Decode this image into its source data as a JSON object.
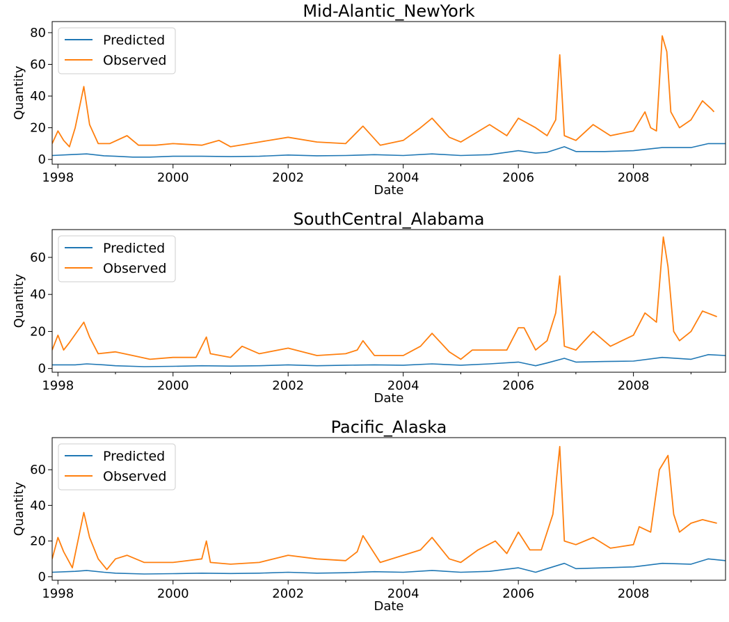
{
  "chart_data": [
    {
      "type": "line",
      "title": "Mid-Alantic_NewYork",
      "xlabel": "Date",
      "ylabel": "Quantity",
      "xlim": [
        1997.9,
        2009.6
      ],
      "ylim": [
        -3,
        87
      ],
      "xticks": [
        1998,
        2000,
        2002,
        2004,
        2006,
        2008
      ],
      "xtick_labels": [
        "1998",
        "2000",
        "2002",
        "2004",
        "2006",
        "2008"
      ],
      "yticks": [
        0,
        20,
        40,
        60,
        80
      ],
      "ytick_labels": [
        "0",
        "20",
        "40",
        "60",
        "80"
      ],
      "legend": {
        "position": "upper-left",
        "entries": [
          "Predicted",
          "Observed"
        ]
      },
      "series": [
        {
          "name": "Predicted",
          "color": "#1f77b4",
          "x": [
            1997.9,
            1998.2,
            1998.5,
            1998.8,
            1999.0,
            1999.3,
            1999.6,
            2000.0,
            2000.5,
            2001.0,
            2001.5,
            2002.0,
            2002.5,
            2003.0,
            2003.5,
            2004.0,
            2004.5,
            2005.0,
            2005.5,
            2006.0,
            2006.3,
            2006.5,
            2006.8,
            2007.0,
            2007.5,
            2008.0,
            2008.5,
            2009.0,
            2009.3,
            2009.6
          ],
          "y": [
            2.5,
            3.0,
            3.5,
            2.3,
            2.0,
            1.5,
            1.5,
            2.0,
            2.0,
            1.8,
            2.0,
            2.8,
            2.3,
            2.5,
            3.0,
            2.5,
            3.5,
            2.5,
            3.0,
            5.5,
            4.0,
            4.5,
            8.0,
            5.0,
            5.0,
            5.5,
            7.5,
            7.5,
            10.0,
            10.0
          ]
        },
        {
          "name": "Observed",
          "color": "#ff7f0e",
          "x": [
            1997.9,
            1998.0,
            1998.1,
            1998.2,
            1998.3,
            1998.45,
            1998.55,
            1998.7,
            1998.9,
            1999.2,
            1999.4,
            1999.7,
            2000.0,
            2000.5,
            2000.8,
            2001.0,
            2001.5,
            2002.0,
            2002.5,
            2003.0,
            2003.3,
            2003.6,
            2004.0,
            2004.3,
            2004.5,
            2004.8,
            2005.0,
            2005.5,
            2005.8,
            2006.0,
            2006.3,
            2006.5,
            2006.65,
            2006.72,
            2006.8,
            2007.0,
            2007.3,
            2007.6,
            2008.0,
            2008.2,
            2008.3,
            2008.4,
            2008.5,
            2008.58,
            2008.65,
            2008.8,
            2009.0,
            2009.2,
            2009.35,
            2009.4
          ],
          "y": [
            10,
            18,
            12,
            8,
            20,
            46,
            22,
            10,
            10,
            15,
            9,
            9,
            10,
            9,
            12,
            8,
            11,
            14,
            11,
            10,
            21,
            9,
            12,
            20,
            26,
            14,
            11,
            22,
            15,
            26,
            20,
            15,
            25,
            66,
            15,
            12,
            22,
            15,
            18,
            30,
            20,
            18,
            78,
            68,
            30,
            20,
            25,
            37,
            32,
            30
          ]
        }
      ]
    },
    {
      "type": "line",
      "title": "SouthCentral_Alabama",
      "xlabel": "Date",
      "ylabel": "Quantity",
      "xlim": [
        1997.9,
        2009.6
      ],
      "ylim": [
        -2,
        75
      ],
      "xticks": [
        1998,
        2000,
        2002,
        2004,
        2006,
        2008
      ],
      "xtick_labels": [
        "1998",
        "2000",
        "2002",
        "2004",
        "2006",
        "2008"
      ],
      "yticks": [
        0,
        20,
        40,
        60
      ],
      "ytick_labels": [
        "0",
        "20",
        "40",
        "60"
      ],
      "legend": {
        "position": "upper-left",
        "entries": [
          "Predicted",
          "Observed"
        ]
      },
      "series": [
        {
          "name": "Predicted",
          "color": "#1f77b4",
          "x": [
            1997.9,
            1998.3,
            1998.5,
            1998.8,
            1999.0,
            1999.5,
            2000.0,
            2000.5,
            2001.0,
            2001.5,
            2002.0,
            2002.5,
            2003.0,
            2003.5,
            2004.0,
            2004.5,
            2005.0,
            2005.5,
            2006.0,
            2006.3,
            2006.5,
            2006.8,
            2007.0,
            2007.5,
            2008.0,
            2008.5,
            2009.0,
            2009.3,
            2009.6
          ],
          "y": [
            2.0,
            2.0,
            2.5,
            2.0,
            1.5,
            1.0,
            1.2,
            1.5,
            1.3,
            1.5,
            2.0,
            1.5,
            1.8,
            2.0,
            1.8,
            2.5,
            1.8,
            2.5,
            3.5,
            1.5,
            3.0,
            5.5,
            3.5,
            3.8,
            4.0,
            6.0,
            5.0,
            7.5,
            7.0
          ]
        },
        {
          "name": "Observed",
          "color": "#ff7f0e",
          "x": [
            1997.9,
            1998.0,
            1998.1,
            1998.2,
            1998.45,
            1998.55,
            1998.7,
            1999.0,
            1999.3,
            1999.6,
            2000.0,
            2000.4,
            2000.58,
            2000.65,
            2001.0,
            2001.2,
            2001.5,
            2002.0,
            2002.5,
            2003.0,
            2003.2,
            2003.3,
            2003.5,
            2004.0,
            2004.3,
            2004.5,
            2004.8,
            2005.0,
            2005.2,
            2005.5,
            2005.8,
            2006.0,
            2006.1,
            2006.3,
            2006.5,
            2006.65,
            2006.72,
            2006.8,
            2007.0,
            2007.3,
            2007.6,
            2008.0,
            2008.2,
            2008.4,
            2008.52,
            2008.6,
            2008.7,
            2008.8,
            2009.0,
            2009.2,
            2009.45
          ],
          "y": [
            10,
            18,
            10,
            14,
            25,
            17,
            8,
            9,
            7,
            5,
            6,
            6,
            17,
            8,
            6,
            12,
            8,
            11,
            7,
            8,
            10,
            15,
            7,
            7,
            12,
            19,
            9,
            5,
            10,
            10,
            10,
            22,
            22,
            10,
            15,
            30,
            50,
            12,
            10,
            20,
            12,
            18,
            30,
            25,
            71,
            55,
            20,
            15,
            20,
            31,
            28
          ]
        }
      ]
    },
    {
      "type": "line",
      "title": "Pacific_Alaska",
      "xlabel": "Date",
      "ylabel": "Quantity",
      "xlim": [
        1997.9,
        2009.6
      ],
      "ylim": [
        -2,
        78
      ],
      "xticks": [
        1998,
        2000,
        2002,
        2004,
        2006,
        2008
      ],
      "xtick_labels": [
        "1998",
        "2000",
        "2002",
        "2004",
        "2006",
        "2008"
      ],
      "yticks": [
        0,
        20,
        40,
        60
      ],
      "ytick_labels": [
        "0",
        "20",
        "40",
        "60"
      ],
      "legend": {
        "position": "upper-left",
        "entries": [
          "Predicted",
          "Observed"
        ]
      },
      "series": [
        {
          "name": "Predicted",
          "color": "#1f77b4",
          "x": [
            1997.9,
            1998.3,
            1998.5,
            1998.8,
            1999.0,
            1999.5,
            2000.0,
            2000.5,
            2001.0,
            2001.5,
            2002.0,
            2002.5,
            2003.0,
            2003.5,
            2004.0,
            2004.5,
            2005.0,
            2005.5,
            2006.0,
            2006.3,
            2006.5,
            2006.8,
            2007.0,
            2007.5,
            2008.0,
            2008.5,
            2009.0,
            2009.3,
            2009.6
          ],
          "y": [
            2.5,
            3.0,
            3.5,
            2.5,
            2.0,
            1.5,
            1.7,
            2.0,
            1.8,
            2.0,
            2.5,
            2.0,
            2.2,
            2.8,
            2.5,
            3.5,
            2.5,
            3.0,
            5.0,
            2.5,
            4.5,
            7.5,
            4.5,
            5.0,
            5.5,
            7.5,
            7.0,
            10.0,
            9.0
          ]
        },
        {
          "name": "Observed",
          "color": "#ff7f0e",
          "x": [
            1997.9,
            1998.0,
            1998.1,
            1998.25,
            1998.45,
            1998.55,
            1998.7,
            1998.85,
            1999.0,
            1999.2,
            1999.5,
            2000.0,
            2000.5,
            2000.58,
            2000.65,
            2001.0,
            2001.5,
            2002.0,
            2002.5,
            2003.0,
            2003.2,
            2003.3,
            2003.6,
            2004.0,
            2004.3,
            2004.5,
            2004.8,
            2005.0,
            2005.3,
            2005.6,
            2005.8,
            2006.0,
            2006.2,
            2006.4,
            2006.6,
            2006.72,
            2006.8,
            2007.0,
            2007.3,
            2007.6,
            2008.0,
            2008.1,
            2008.3,
            2008.45,
            2008.6,
            2008.7,
            2008.8,
            2009.0,
            2009.2,
            2009.45
          ],
          "y": [
            10,
            22,
            14,
            5,
            36,
            22,
            10,
            4,
            10,
            12,
            8,
            8,
            10,
            20,
            8,
            7,
            8,
            12,
            10,
            9,
            14,
            23,
            8,
            12,
            15,
            22,
            10,
            8,
            15,
            20,
            13,
            25,
            15,
            15,
            35,
            73,
            20,
            18,
            22,
            16,
            18,
            28,
            25,
            60,
            68,
            35,
            25,
            30,
            32,
            30
          ]
        }
      ]
    }
  ]
}
